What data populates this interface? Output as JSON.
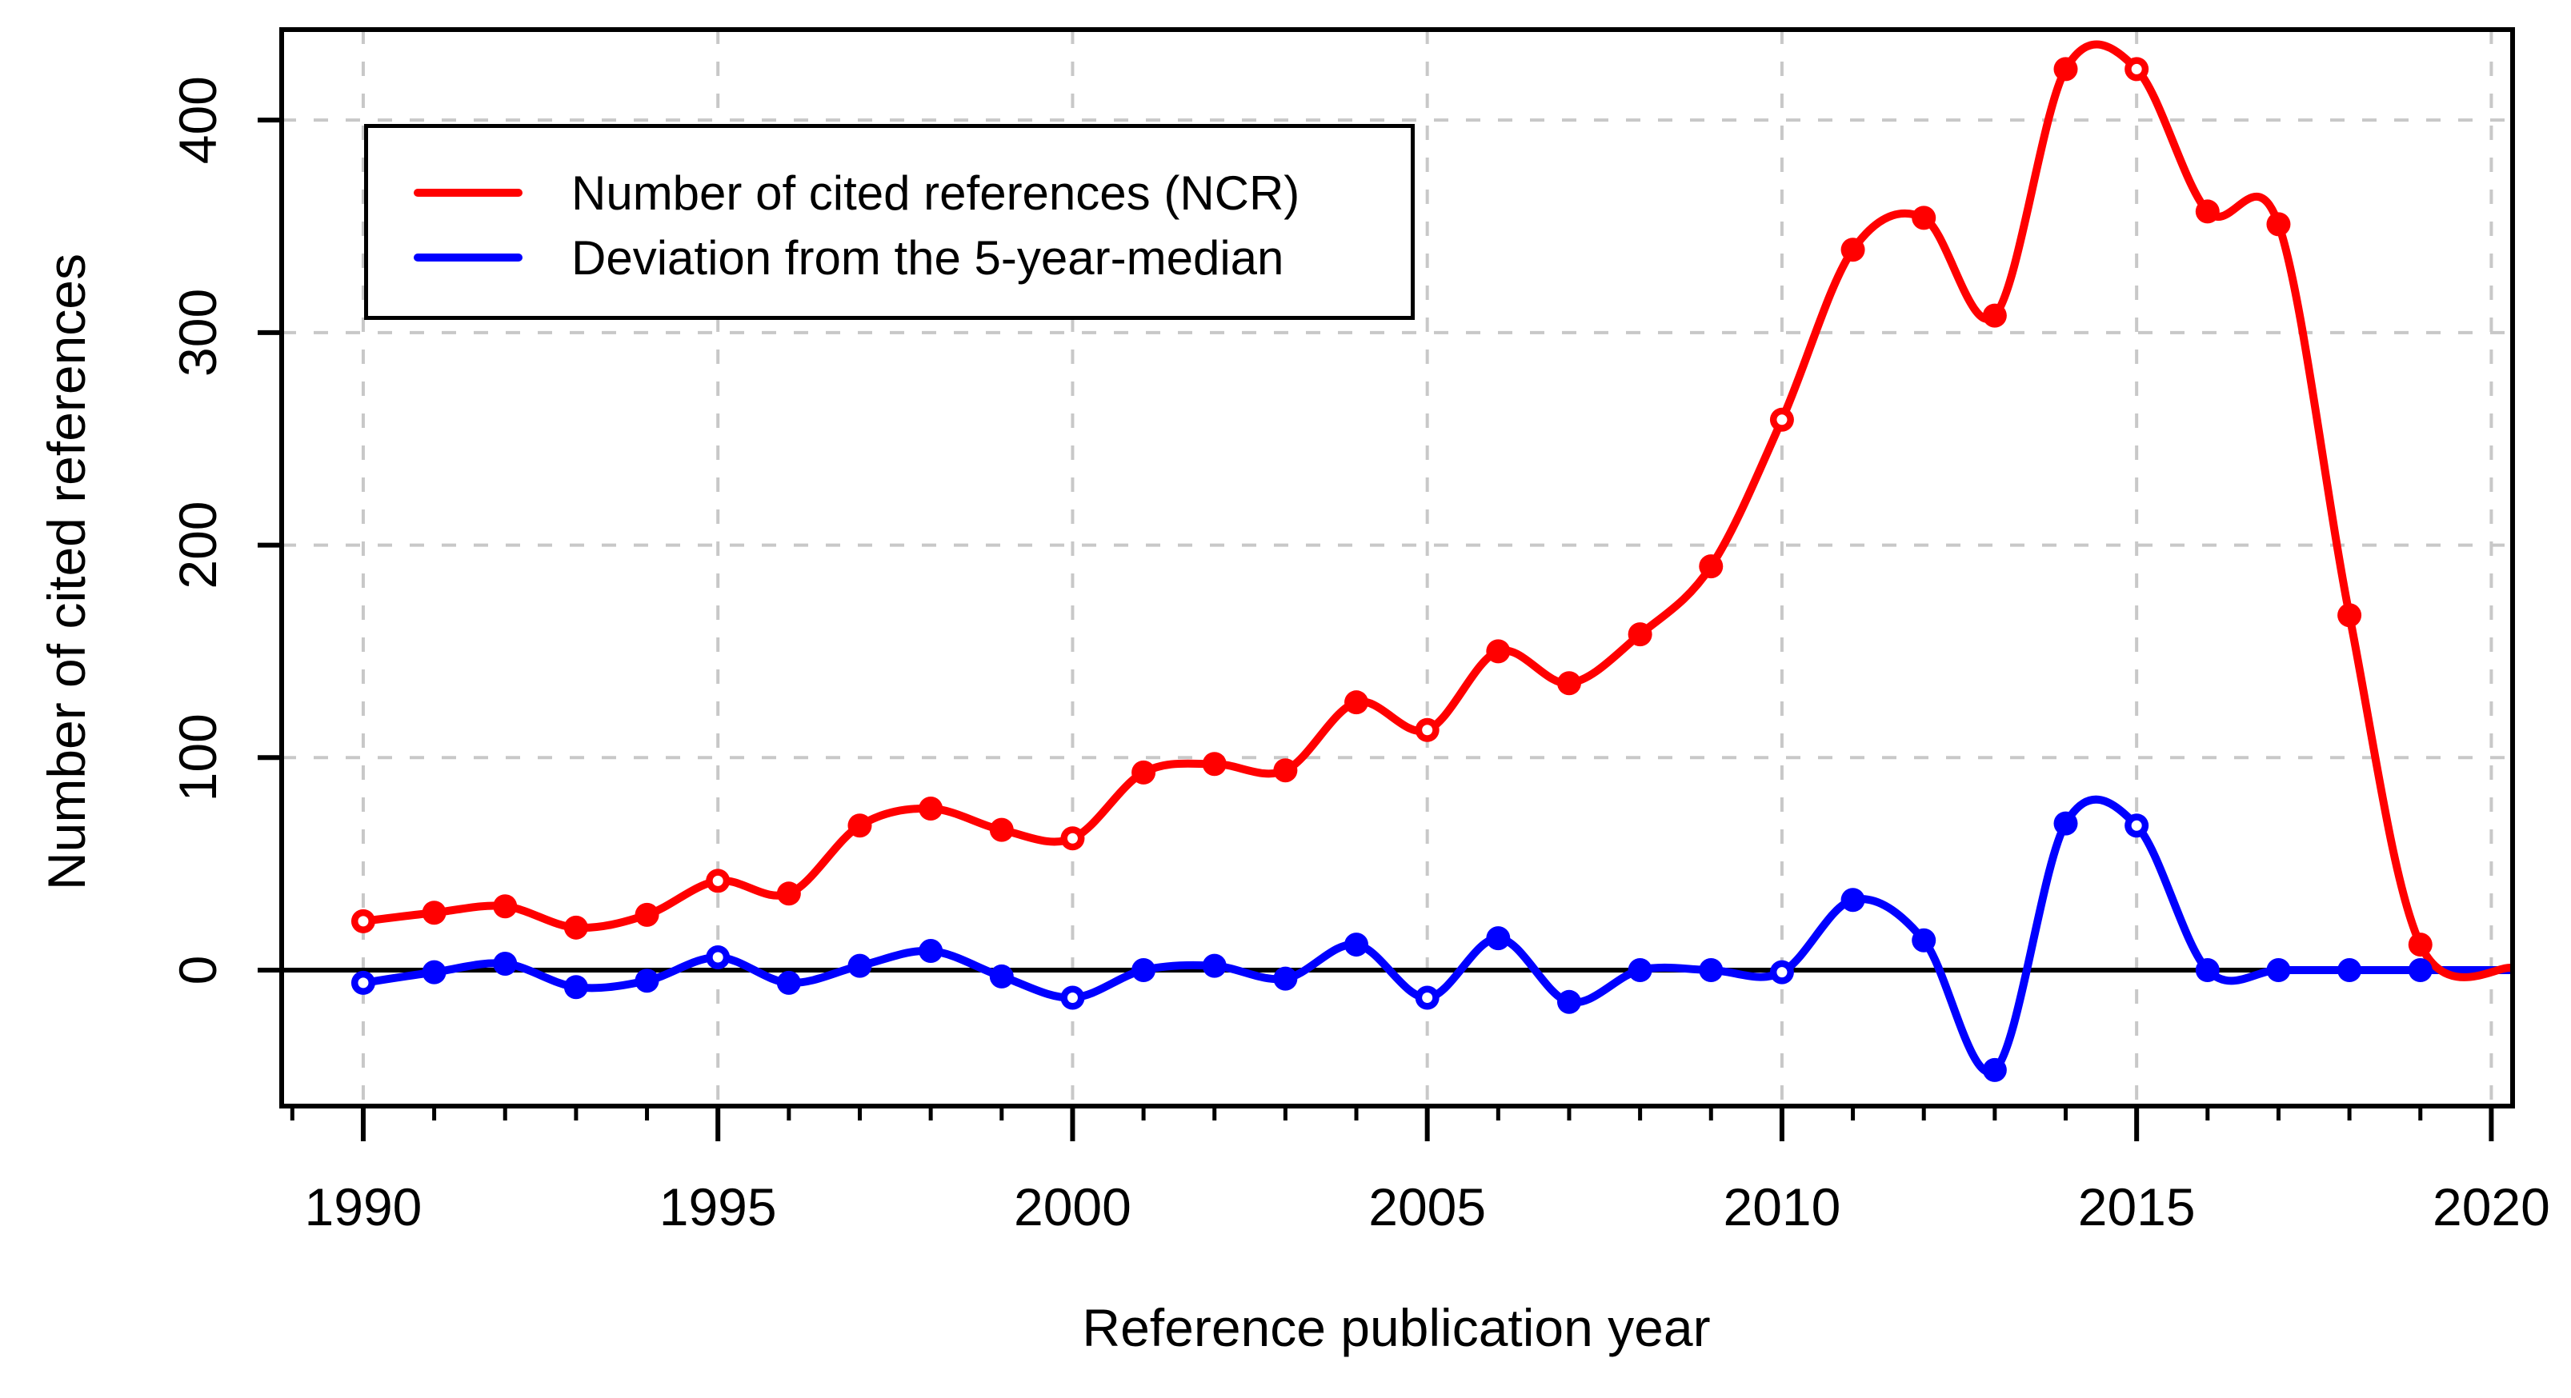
{
  "figure": {
    "background": "#ffffff",
    "x_axis_title": "Reference publication year",
    "y_axis_title": "Number of cited references"
  },
  "legend": {
    "entries": [
      {
        "label": "Number of cited references (NCR)",
        "color": "#ff0000"
      },
      {
        "label": "Deviation from the 5-year-median",
        "color": "#0000ff"
      }
    ]
  },
  "chart_data": {
    "type": "line",
    "title": "",
    "xlabel": "Reference publication year",
    "ylabel": "Number of cited references",
    "x": [
      1990,
      1991,
      1992,
      1993,
      1994,
      1995,
      1996,
      1997,
      1998,
      1999,
      2000,
      2001,
      2002,
      2003,
      2004,
      2005,
      2006,
      2007,
      2008,
      2009,
      2010,
      2011,
      2012,
      2013,
      2014,
      2015,
      2016,
      2017,
      2018,
      2019
    ],
    "series": [
      {
        "name": "Number of cited references (NCR)",
        "color": "#ff0000",
        "values": [
          23,
          27,
          30,
          20,
          26,
          42,
          36,
          68,
          76,
          66,
          62,
          93,
          97,
          94,
          126,
          113,
          150,
          135,
          158,
          190,
          259,
          339,
          354,
          308,
          424,
          424,
          357,
          351,
          167,
          12
        ]
      },
      {
        "name": "Deviation from the 5-year-median",
        "color": "#0000ff",
        "values": [
          -6,
          -1,
          3,
          -8,
          -5,
          6,
          -6,
          2,
          9,
          -3,
          -13,
          0,
          2,
          -4,
          12,
          -13,
          15,
          -15,
          0,
          0,
          -1,
          33,
          14,
          -47,
          69,
          68,
          0,
          0,
          0,
          0
        ]
      }
    ],
    "x_tick_labels": [
      "1990",
      "1995",
      "2000",
      "2005",
      "2010",
      "2015",
      "2020"
    ],
    "x_major_ticks": [
      1990,
      1995,
      2000,
      2005,
      2010,
      2015,
      2020
    ],
    "x_minor_tick_step": 1,
    "y_tick_labels": [
      "0",
      "100",
      "200",
      "300",
      "400"
    ],
    "y_ticks": [
      0,
      100,
      200,
      300,
      400
    ],
    "xlim": [
      1988.85,
      2020.3
    ],
    "ylim": [
      -64,
      442.6
    ],
    "grid": true,
    "grid_color": "#c8c8c8",
    "zero_line": true,
    "zero_line_color": "#000000",
    "smooth": true,
    "open_marker_years": [
      1990,
      1995,
      2000,
      2005,
      2010,
      2015
    ],
    "legend_position": "top-left"
  }
}
